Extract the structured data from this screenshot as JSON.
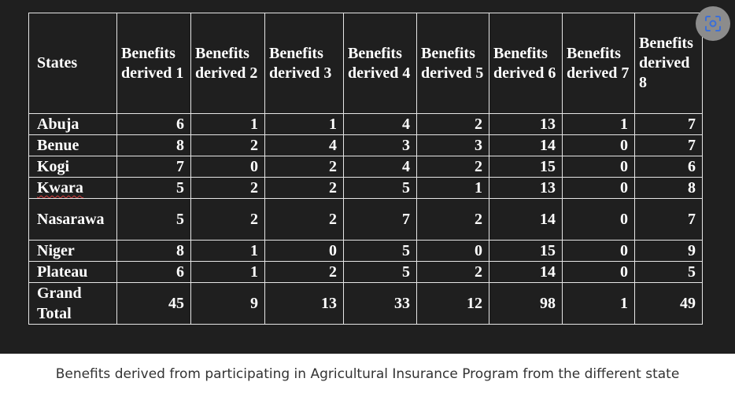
{
  "table": {
    "header": [
      "States",
      "Benefits derived 1",
      "Benefits derived 2",
      "Benefits derived 3",
      "Benefits derived 4",
      "Benefits derived 5",
      "Benefits derived 6",
      "Benefits derived 7",
      "Benefits derived 8"
    ],
    "rows": [
      {
        "state": "Abuja",
        "values": [
          "6",
          "1",
          "1",
          "4",
          "2",
          "13",
          "1",
          "7"
        ]
      },
      {
        "state": "Benue",
        "values": [
          "8",
          "2",
          "4",
          "3",
          "3",
          "14",
          "0",
          "7"
        ]
      },
      {
        "state": "Kogi",
        "values": [
          "7",
          "0",
          "2",
          "4",
          "2",
          "15",
          "0",
          "6"
        ]
      },
      {
        "state": "Kwara",
        "values": [
          "5",
          "2",
          "2",
          "5",
          "1",
          "13",
          "0",
          "8"
        ]
      },
      {
        "state": "Nasarawa",
        "values": [
          "5",
          "2",
          "2",
          "7",
          "2",
          "14",
          "0",
          "7"
        ]
      },
      {
        "state": "Niger",
        "values": [
          "8",
          "1",
          "0",
          "5",
          "0",
          "15",
          "0",
          "9"
        ]
      },
      {
        "state": "Plateau",
        "values": [
          "6",
          "1",
          "2",
          "5",
          "2",
          "14",
          "0",
          "5"
        ]
      },
      {
        "state": "Grand Total",
        "values": [
          "45",
          "9",
          "13",
          "33",
          "12",
          "98",
          "1",
          "49"
        ]
      }
    ]
  },
  "icons": {
    "lens": "google-lens-icon"
  },
  "colors": {
    "image_background": "#1f1f1f",
    "table_text": "#ffffff",
    "caption_text": "#333333",
    "lens_button": "#8c8c8c"
  },
  "caption": "Benefits derived from participating in Agricultural Insurance Program from the different state"
}
